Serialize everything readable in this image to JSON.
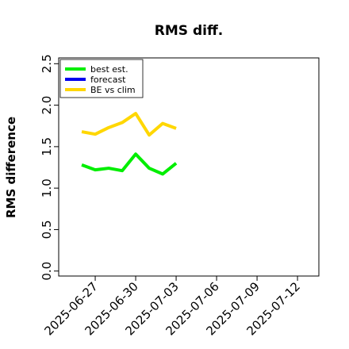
{
  "chart_data": {
    "type": "line",
    "title": "RMS diff.",
    "ylabel": "RMS difference",
    "x": [
      "2025-06-26",
      "2025-06-27",
      "2025-06-28",
      "2025-06-29",
      "2025-06-30",
      "2025-07-01",
      "2025-07-02",
      "2025-07-03"
    ],
    "series": [
      {
        "name": "best est.",
        "color": "#00ee00",
        "values": [
          1.28,
          1.22,
          1.24,
          1.21,
          1.41,
          1.24,
          1.17,
          1.3
        ]
      },
      {
        "name": "forecast",
        "color": "#0000ee",
        "values": [
          null,
          null,
          null,
          null,
          null,
          null,
          null,
          null
        ]
      },
      {
        "name": "BE vs clim",
        "color": "#ffd700",
        "values": [
          1.68,
          1.65,
          1.73,
          1.79,
          1.9,
          1.64,
          1.78,
          1.72
        ]
      }
    ],
    "xlim": [
      "2025-06-24T07:00",
      "2025-07-13T14:00"
    ],
    "xticks": [
      "2025-06-27",
      "2025-06-30",
      "2025-07-03",
      "2025-07-06",
      "2025-07-09",
      "2025-07-12"
    ],
    "xtick_label_colors": [
      "#000000",
      "#000000",
      "#228b22",
      "#000000",
      "#000000",
      "#000000"
    ],
    "ylim": [
      -0.06,
      2.57
    ],
    "yticks": [
      0.0,
      0.5,
      1.0,
      1.5,
      2.0,
      2.5
    ],
    "legend": "upper left"
  }
}
